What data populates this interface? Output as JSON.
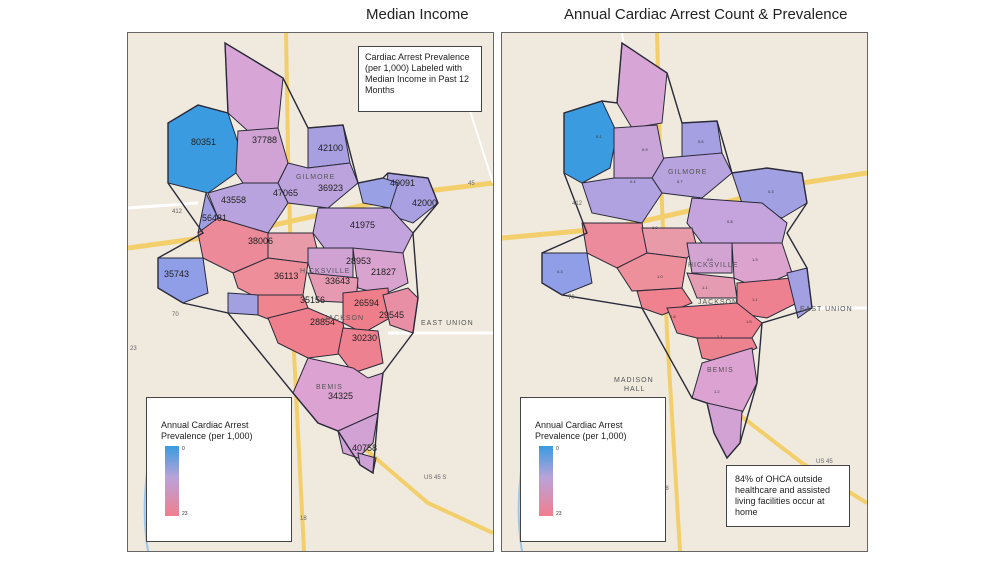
{
  "titles": {
    "left": "Median Income",
    "right": "Annual Cardiac Arrest Count & Prevalence"
  },
  "left_panel": {
    "note": "Cardiac Arrest Prevalence (per 1,000) Labeled with Median Income in Past 12 Months",
    "legend": {
      "title": "Annual Cardiac Arrest Prevalence (per 1,000)",
      "min": "0",
      "max": "23"
    },
    "income_labels": [
      "80351",
      "37788",
      "42100",
      "36923",
      "47065",
      "43558",
      "56481",
      "42000",
      "40091",
      "38006",
      "41975",
      "35743",
      "28953",
      "36113",
      "33643",
      "21827",
      "35156",
      "26594",
      "28854",
      "29545",
      "30230",
      "34325",
      "40758"
    ],
    "places": [
      "GILMORE",
      "HICKSVILLE",
      "JACKSON",
      "EAST UNION",
      "BEMIS"
    ],
    "roads": [
      "412",
      "70",
      "US 45 S",
      "23",
      "18",
      "45"
    ]
  },
  "right_panel": {
    "legend": {
      "title": "Annual Cardiac Arrest Prevalence (per 1,000)",
      "min": "0",
      "max": "23"
    },
    "callout": "84% of OHCA outside healthcare and assisted living facilities occur at home",
    "places": [
      "GILMORE",
      "HICKSVILLE",
      "JACKSON",
      "EAST UNION",
      "MADISON",
      "HALL",
      "BEMIS"
    ],
    "roads": [
      "412",
      "70",
      "US 45",
      "18"
    ]
  },
  "colors": {
    "blue": "#3a9be0",
    "purple": "#b4a3dd",
    "pink": "#dba4d2",
    "red": "#ef7f8c",
    "boundary": "#2a2a3a"
  }
}
